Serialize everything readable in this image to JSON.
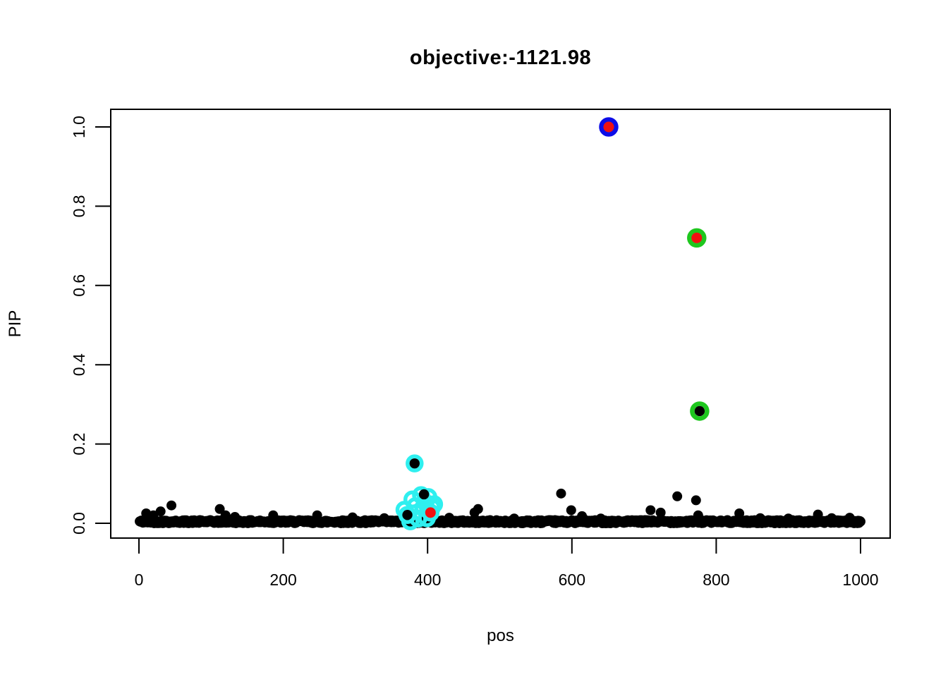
{
  "chart_data": {
    "type": "scatter",
    "title": "objective:-1121.98",
    "xlabel": "pos",
    "ylabel": "PIP",
    "xlim": [
      0,
      1000
    ],
    "ylim": [
      0,
      1.0
    ],
    "xticks": [
      0,
      200,
      400,
      600,
      800,
      1000
    ],
    "yticks": [
      0.0,
      0.2,
      0.4,
      0.6,
      0.8,
      1.0
    ],
    "ytick_labels": [
      "0.0",
      "0.2",
      "0.4",
      "0.6",
      "0.8",
      "1.0"
    ],
    "grid": false,
    "legend": "none",
    "colors": {
      "point": "#000000",
      "red": "#f01111",
      "blue": "#0d0de8",
      "green": "#1ec71e",
      "cyan": "#2fefef"
    },
    "baseline": {
      "description": "dense band of black points with PIP near 0 spanning all positions",
      "count": 900,
      "pos_min": 1,
      "pos_max": 1000,
      "pip_max": 0.008,
      "seed": 42
    },
    "black_outlier_points": [
      [
        10,
        0.025
      ],
      [
        20,
        0.02
      ],
      [
        30,
        0.03
      ],
      [
        45,
        0.045
      ],
      [
        112,
        0.036
      ],
      [
        120,
        0.02
      ],
      [
        133,
        0.016
      ],
      [
        186,
        0.02
      ],
      [
        247,
        0.02
      ],
      [
        296,
        0.015
      ],
      [
        340,
        0.013
      ],
      [
        430,
        0.014
      ],
      [
        465,
        0.027
      ],
      [
        470,
        0.036
      ],
      [
        520,
        0.012
      ],
      [
        585,
        0.075
      ],
      [
        599,
        0.033
      ],
      [
        614,
        0.018
      ],
      [
        640,
        0.012
      ],
      [
        709,
        0.033
      ],
      [
        723,
        0.027
      ],
      [
        746,
        0.068
      ],
      [
        772,
        0.058
      ],
      [
        775,
        0.02
      ],
      [
        832,
        0.025
      ],
      [
        861,
        0.013
      ],
      [
        900,
        0.012
      ],
      [
        941,
        0.022
      ],
      [
        960,
        0.013
      ],
      [
        985,
        0.014
      ]
    ],
    "credible_set_rings": [
      {
        "color": "cyan",
        "pos": 376,
        "pip": 0.005
      },
      {
        "color": "cyan",
        "pos": 387,
        "pip": 0.012
      },
      {
        "color": "cyan",
        "pos": 399,
        "pip": 0.013
      },
      {
        "color": "cyan",
        "pos": 372,
        "pip": 0.021
      },
      {
        "color": "cyan",
        "pos": 404,
        "pip": 0.027
      },
      {
        "color": "cyan",
        "pos": 368,
        "pip": 0.034
      },
      {
        "color": "cyan",
        "pos": 394,
        "pip": 0.039
      },
      {
        "color": "cyan",
        "pos": 406,
        "pip": 0.04
      },
      {
        "color": "cyan",
        "pos": 383,
        "pip": 0.043
      },
      {
        "color": "cyan",
        "pos": 409,
        "pip": 0.048
      },
      {
        "color": "cyan",
        "pos": 397,
        "pip": 0.052
      },
      {
        "color": "cyan",
        "pos": 379,
        "pip": 0.06
      },
      {
        "color": "cyan",
        "pos": 401,
        "pip": 0.066
      },
      {
        "color": "cyan",
        "pos": 391,
        "pip": 0.071
      },
      {
        "color": "cyan",
        "pos": 382,
        "pip": 0.151
      },
      {
        "color": "green",
        "pos": 777,
        "pip": 0.283
      },
      {
        "color": "green",
        "pos": 773,
        "pip": 0.72
      },
      {
        "color": "blue",
        "pos": 651,
        "pip": 1.0
      }
    ],
    "black_dots_in_rings": [
      [
        372,
        0.021
      ],
      [
        395,
        0.073
      ],
      [
        382,
        0.151
      ],
      [
        777,
        0.283
      ]
    ],
    "red_points": [
      [
        404,
        0.027
      ],
      [
        773,
        0.72
      ],
      [
        651,
        1.0
      ]
    ]
  }
}
